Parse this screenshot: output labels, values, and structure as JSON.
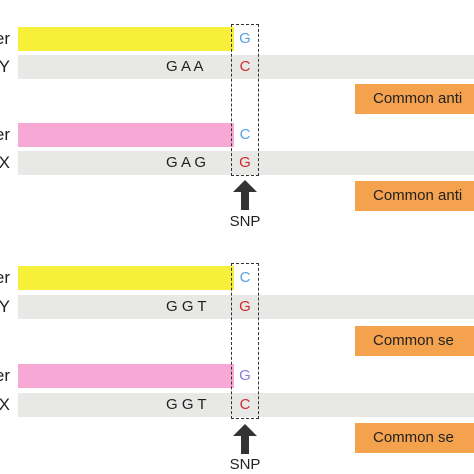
{
  "colors": {
    "allele_probe_yellow": "#f7f03a",
    "allele_probe_pink": "#f7a8d4",
    "template_grey": "#e8e8e6",
    "common_primer_orange": "#f5a24e",
    "base_blue": "#5aa0e0",
    "base_red": "#d22a2a",
    "base_purple": "#8a78d8"
  },
  "panel_top": {
    "rows": [
      {
        "label": "er",
        "kind": "primer"
      },
      {
        "label": "Y",
        "kind": "template",
        "sequence": "G  A  A"
      },
      {
        "label": "er",
        "kind": "primer"
      },
      {
        "label": "X",
        "kind": "template",
        "sequence": "G  A  G"
      }
    ],
    "snp_bases": [
      "G",
      "C",
      "C",
      "G"
    ],
    "common_primer_1": "Common anti",
    "common_primer_2": "Common anti",
    "snp_label": "SNP"
  },
  "panel_bottom": {
    "rows": [
      {
        "label": "er",
        "kind": "primer"
      },
      {
        "label": "Y",
        "kind": "template",
        "sequence": "G  G  T"
      },
      {
        "label": "er",
        "kind": "primer"
      },
      {
        "label": "X",
        "kind": "template",
        "sequence": "G  G  T"
      }
    ],
    "snp_bases": [
      "C",
      "G",
      "G",
      "C"
    ],
    "common_primer_1": "Common se",
    "common_primer_2": "Common se",
    "snp_label": "SNP"
  }
}
